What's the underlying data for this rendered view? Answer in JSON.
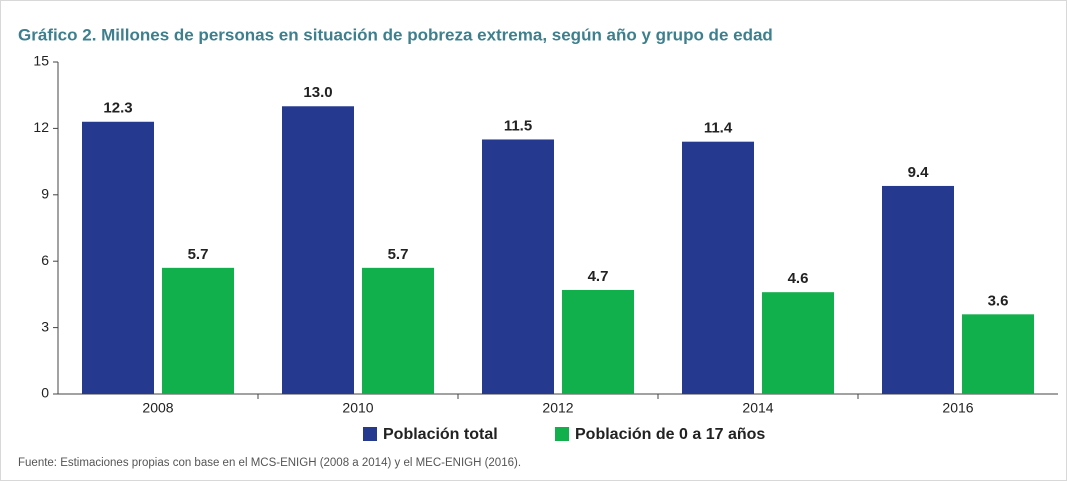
{
  "chart_data": {
    "type": "bar",
    "title": "Gráfico 2. Millones de personas en situación de pobreza extrema, según año y grupo de edad",
    "categories": [
      "2008",
      "2010",
      "2012",
      "2014",
      "2016"
    ],
    "series": [
      {
        "name": "Población total",
        "color": "#253a8e",
        "values": [
          12.3,
          13.0,
          11.5,
          11.4,
          9.4
        ],
        "value_labels": [
          "12.3",
          "13.0",
          "11.5",
          "11.4",
          "9.4"
        ]
      },
      {
        "name": "Población de 0 a 17 años",
        "color": "#12b04c",
        "values": [
          5.7,
          5.7,
          4.7,
          4.6,
          3.6
        ],
        "value_labels": [
          "5.7",
          "5.7",
          "4.7",
          "4.6",
          "3.6"
        ]
      }
    ],
    "ylim": [
      0,
      15
    ],
    "yticks": [
      0,
      3,
      6,
      9,
      12,
      15
    ],
    "grid": false,
    "legend": "bottom",
    "note": "Fuente: Estimaciones propias con base en el MCS-ENIGH (2008 a 2014) y el MEC-ENIGH (2016)."
  }
}
